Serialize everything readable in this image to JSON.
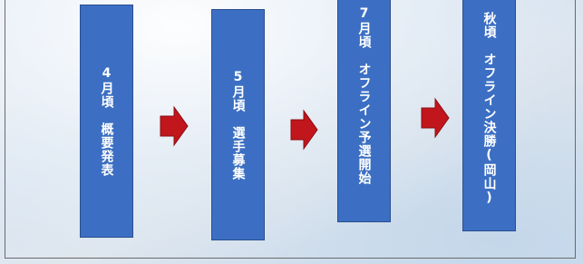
{
  "nodes": [
    {
      "label": "4月頃　概要発表"
    },
    {
      "label": "5月頃　選手募集"
    },
    {
      "label": "7月頃　オフライン予選開始"
    },
    {
      "label": "秋頃　オフライン決勝(岡山)"
    }
  ]
}
